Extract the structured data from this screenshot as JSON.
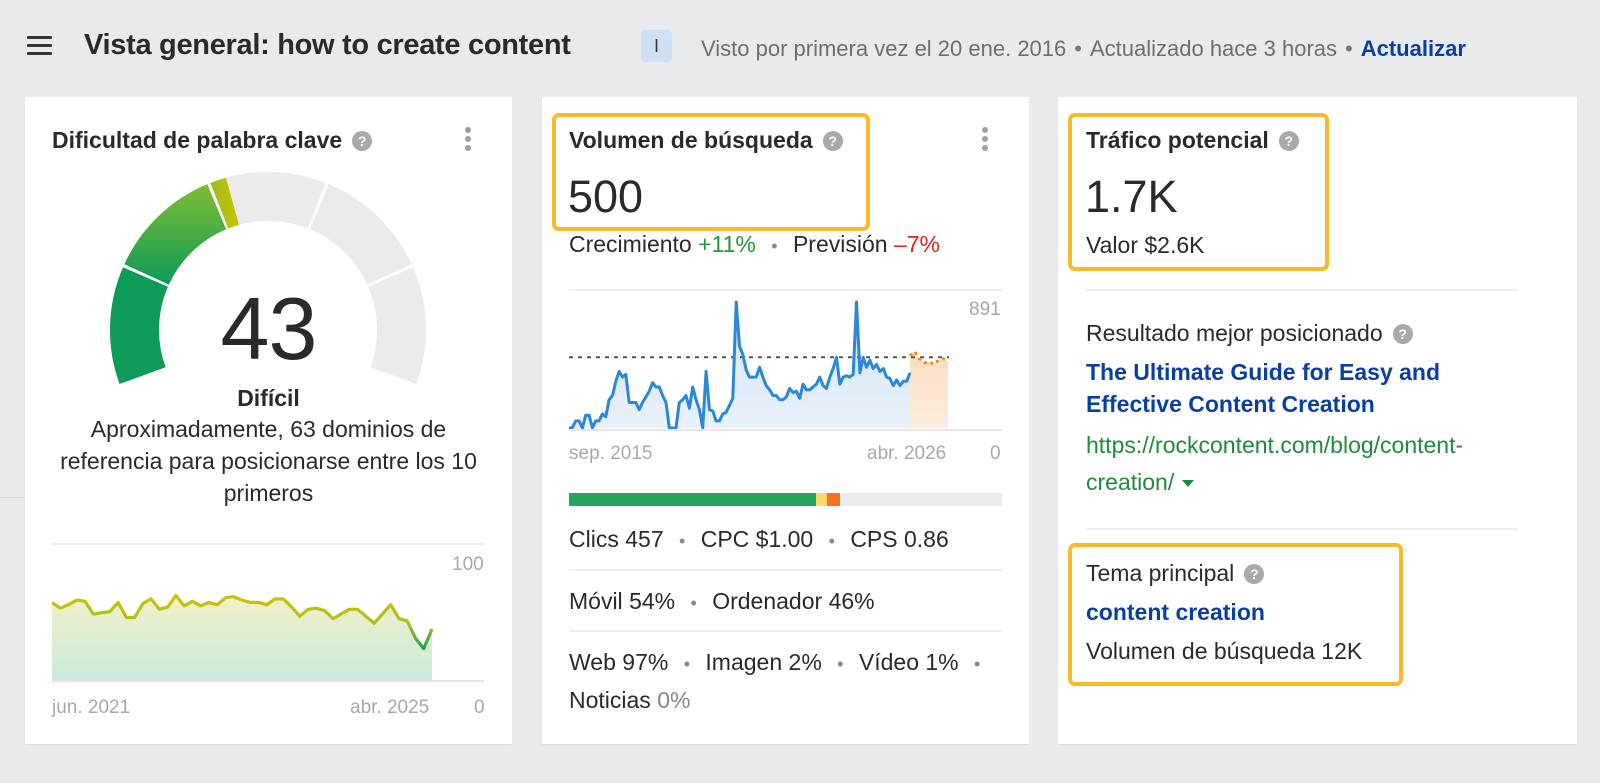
{
  "header": {
    "title": "Vista general: how to create content",
    "intent_badge": "I",
    "first_seen": "Visto por primera vez el 20 ene. 2016",
    "updated": "Actualizado hace 3 horas",
    "refresh_label": "Actualizar",
    "separator": "•"
  },
  "keyword_difficulty": {
    "title": "Dificultad de palabra clave",
    "help": "?",
    "score": "43",
    "label": "Difícil",
    "description": "Aproximadamente, 63 dominios de referencia para posicionarse entre los 10 primeros",
    "chart": {
      "y_max_label": "100",
      "y_min_label": "0",
      "x_start_label": "jun. 2021",
      "x_end_label": "abr. 2025"
    },
    "colors": {
      "green_dark": "#0e9a57",
      "green": "#6cb83a",
      "yellow": "#c8c400",
      "empty": "#ebebed"
    }
  },
  "search_volume": {
    "title": "Volumen de búsqueda",
    "help": "?",
    "value": "500",
    "growth_label": "Crecimiento",
    "growth_value": "+11%",
    "forecast_label": "Previsión",
    "forecast_value": "–7%",
    "chart": {
      "y_max_label": "891",
      "y_min_label": "0",
      "x_start_label": "sep. 2015",
      "x_end_label": "abr. 2026"
    },
    "click_bar": [
      {
        "name": "clicks",
        "pct": 57,
        "color": "#27a55f"
      },
      {
        "name": "paid",
        "pct": 2.5,
        "color": "#fbd968"
      },
      {
        "name": "no-click",
        "pct": 3,
        "color": "#f7721c"
      }
    ],
    "clicks_label": "Clics",
    "clicks_value": "457",
    "cpc_label": "CPC",
    "cpc_value": "$1.00",
    "cps_label": "CPS",
    "cps_value": "0.86",
    "mobile_label": "Móvil",
    "mobile_value": "54%",
    "desktop_label": "Ordenador",
    "desktop_value": "46%",
    "web_label": "Web",
    "web_value": "97%",
    "image_label": "Imagen",
    "image_value": "2%",
    "video_label": "Vídeo",
    "video_value": "1%",
    "news_label": "Noticias",
    "news_value": "0%"
  },
  "traffic_potential": {
    "title": "Tráfico potencial",
    "help": "?",
    "value": "1.7K",
    "worth_label": "Valor $2.6K",
    "top_result_label": "Resultado mejor posicionado",
    "top_result_title": "The Ultimate Guide for Easy and Effective Content Creation",
    "top_result_url": "https://rockcontent.com/blog/content-creation/",
    "parent_topic_label": "Tema principal",
    "parent_topic": "content creation",
    "parent_topic_volume": "Volumen de búsqueda 12K"
  },
  "chart_data": [
    {
      "type": "area",
      "title": "Dificultad de palabra clave (historial)",
      "x_labels": [
        "jun. 2021",
        "abr. 2025"
      ],
      "ylim": [
        0,
        100
      ],
      "values": [
        68,
        63,
        66,
        70,
        69,
        58,
        59,
        60,
        68,
        55,
        55,
        67,
        71,
        62,
        64,
        74,
        65,
        69,
        65,
        68,
        66,
        72,
        73,
        70,
        68,
        68,
        66,
        71,
        71,
        64,
        56,
        62,
        63,
        61,
        54,
        58,
        62,
        62,
        56,
        50,
        58,
        66,
        54,
        52,
        37,
        28,
        45
      ]
    },
    {
      "type": "area",
      "title": "Volumen de búsqueda (historial y previsión)",
      "x_labels": [
        "sep. 2015",
        "abr. 2026"
      ],
      "ylim": [
        0,
        891
      ],
      "reference_line": 500,
      "values": [
        0,
        0,
        50,
        50,
        0,
        90,
        90,
        0,
        50,
        50,
        100,
        80,
        200,
        230,
        330,
        400,
        360,
        380,
        180,
        180,
        180,
        130,
        180,
        220,
        260,
        320,
        290,
        290,
        230,
        180,
        0,
        0,
        0,
        180,
        200,
        230,
        140,
        290,
        200,
        130,
        0,
        400,
        130,
        120,
        50,
        50,
        100,
        110,
        160,
        210,
        891,
        580,
        520,
        410,
        360,
        360,
        360,
        430,
        360,
        300,
        270,
        230,
        230,
        200,
        200,
        220,
        280,
        250,
        260,
        210,
        310,
        270,
        270,
        290,
        310,
        360,
        300,
        280,
        360,
        420,
        500,
        310,
        360,
        370,
        360,
        380,
        891,
        390,
        500,
        430,
        480,
        420,
        450,
        400,
        420,
        360,
        350,
        300,
        340,
        300,
        330,
        330,
        391
      ],
      "forecast": [
        510,
        540,
        490,
        460,
        470,
        450,
        480,
        490,
        470
      ]
    }
  ]
}
